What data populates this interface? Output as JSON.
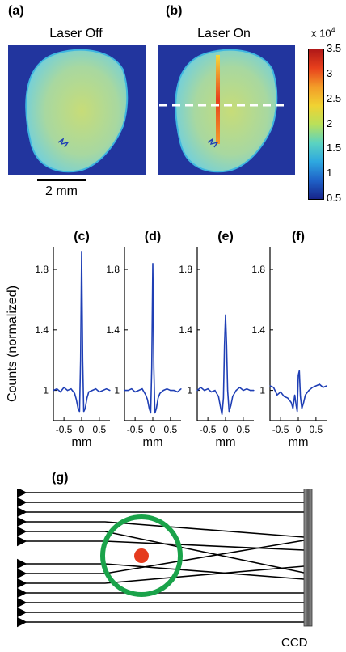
{
  "panels": {
    "a": {
      "label": "(a)",
      "title": "Laser Off"
    },
    "b": {
      "label": "(b)",
      "title": "Laser On"
    },
    "c": {
      "label": "(c)"
    },
    "d": {
      "label": "(d)"
    },
    "e": {
      "label": "(e)"
    },
    "f": {
      "label": "(f)"
    },
    "g": {
      "label": "(g)",
      "detector_label": "CCD"
    }
  },
  "scalebar": {
    "label": "2 mm"
  },
  "colorbar": {
    "exponent_label": "x 10",
    "exponent_power": "4",
    "ticks": [
      "3.5",
      "3",
      "2.5",
      "2",
      "1.5",
      "1",
      "0.5"
    ],
    "colors": [
      "#b01818",
      "#e8401c",
      "#f39c28",
      "#f0d232",
      "#b9e05a",
      "#5cd3c0",
      "#2ea8e0",
      "#1f62c8",
      "#17248a"
    ]
  },
  "line_color": "#1f3fb5",
  "image_colors": {
    "background": "#22359e",
    "sample": "#a8d8a0",
    "sample_edge": "#3fb6e0"
  },
  "ring_color": "#1aa34a",
  "particle_color": "#e53b1e",
  "dashed_line_color": "#ffffff",
  "chart_data": [
    {
      "type": "line",
      "panel": "(c)",
      "xlabel": "mm",
      "ylabel": "Counts (normalized)",
      "xticks": [
        "-0.5",
        "0",
        "0.5"
      ],
      "yticks": [
        "1",
        "1.4",
        "1.8"
      ],
      "xlim": [
        -0.8,
        0.8
      ],
      "ylim": [
        0.8,
        1.95
      ],
      "x": [
        -0.8,
        -0.7,
        -0.6,
        -0.5,
        -0.4,
        -0.3,
        -0.2,
        -0.15,
        -0.1,
        -0.06,
        -0.03,
        0,
        0.03,
        0.06,
        0.1,
        0.15,
        0.2,
        0.3,
        0.4,
        0.5,
        0.6,
        0.7,
        0.8
      ],
      "y": [
        1.0,
        1.01,
        0.99,
        1.02,
        1.0,
        1.01,
        0.98,
        0.94,
        0.88,
        0.86,
        1.2,
        1.92,
        1.2,
        0.86,
        0.88,
        0.95,
        0.99,
        1.0,
        1.01,
        0.99,
        1.0,
        1.01,
        1.0
      ]
    },
    {
      "type": "line",
      "panel": "(d)",
      "xlabel": "mm",
      "xticks": [
        "-0.5",
        "0",
        "0.5"
      ],
      "yticks": [
        "1",
        "1.4",
        "1.8"
      ],
      "xlim": [
        -0.8,
        0.8
      ],
      "ylim": [
        0.8,
        1.95
      ],
      "x": [
        -0.8,
        -0.7,
        -0.6,
        -0.5,
        -0.4,
        -0.3,
        -0.2,
        -0.15,
        -0.1,
        -0.06,
        -0.03,
        0,
        0.03,
        0.06,
        0.1,
        0.15,
        0.2,
        0.3,
        0.4,
        0.5,
        0.6,
        0.7,
        0.8
      ],
      "y": [
        1.0,
        1.0,
        1.01,
        0.99,
        1.0,
        1.01,
        0.97,
        0.94,
        0.88,
        0.85,
        1.15,
        1.84,
        1.15,
        0.85,
        0.88,
        0.95,
        0.98,
        1.0,
        1.01,
        1.0,
        1.0,
        0.99,
        1.01
      ]
    },
    {
      "type": "line",
      "panel": "(e)",
      "xlabel": "mm",
      "xticks": [
        "-0.5",
        "0",
        "0.5"
      ],
      "yticks": [
        "1",
        "1.4",
        "1.8"
      ],
      "xlim": [
        -0.8,
        0.8
      ],
      "ylim": [
        0.8,
        1.95
      ],
      "x": [
        -0.8,
        -0.7,
        -0.6,
        -0.5,
        -0.4,
        -0.3,
        -0.2,
        -0.15,
        -0.1,
        -0.06,
        -0.03,
        0,
        0.03,
        0.06,
        0.1,
        0.15,
        0.2,
        0.3,
        0.4,
        0.5,
        0.6,
        0.7,
        0.8
      ],
      "y": [
        1.0,
        1.02,
        1.0,
        1.01,
        0.99,
        1.0,
        0.96,
        0.9,
        0.84,
        0.95,
        1.3,
        1.5,
        1.3,
        1.0,
        0.86,
        0.9,
        0.96,
        1.0,
        1.02,
        1.0,
        1.01,
        1.0,
        1.0
      ]
    },
    {
      "type": "line",
      "panel": "(f)",
      "xlabel": "mm",
      "xticks": [
        "-0.5",
        "0",
        "0.5"
      ],
      "yticks": [
        "1",
        "1.4",
        "1.8"
      ],
      "xlim": [
        -0.8,
        0.8
      ],
      "ylim": [
        0.8,
        1.95
      ],
      "x": [
        -0.8,
        -0.7,
        -0.6,
        -0.5,
        -0.4,
        -0.3,
        -0.2,
        -0.15,
        -0.1,
        -0.06,
        -0.03,
        0,
        0.03,
        0.06,
        0.1,
        0.15,
        0.2,
        0.3,
        0.4,
        0.5,
        0.6,
        0.7,
        0.8
      ],
      "y": [
        1.03,
        1.02,
        0.97,
        0.99,
        0.96,
        0.95,
        0.92,
        0.88,
        0.97,
        0.9,
        0.86,
        1.1,
        1.13,
        0.96,
        0.88,
        0.92,
        0.97,
        1.0,
        1.02,
        1.03,
        1.04,
        1.02,
        1.03
      ]
    }
  ]
}
